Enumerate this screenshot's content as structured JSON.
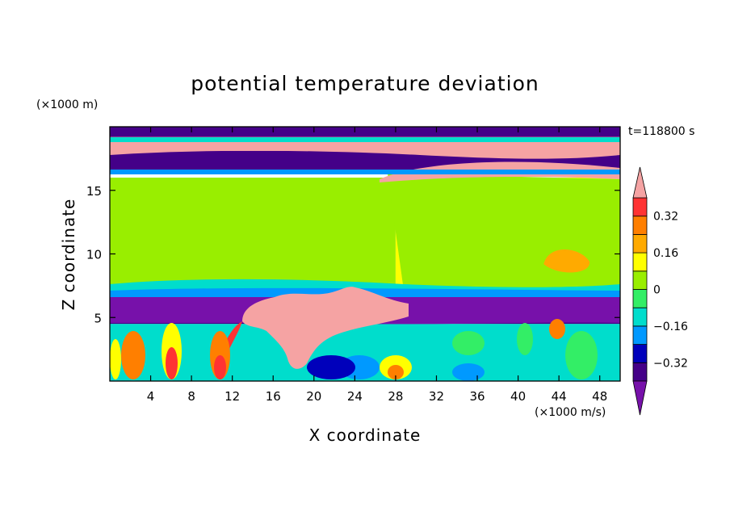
{
  "chart_data": {
    "type": "heatmap",
    "title": "potential temperature deviation",
    "xlabel": "X coordinate",
    "ylabel": "Z coordinate",
    "x_unit": "(×1000 m/s)",
    "y_unit": "(×1000 m)",
    "time_label": "t=118800 s",
    "xlim": [
      0,
      50
    ],
    "ylim": [
      0,
      20
    ],
    "x_ticks": [
      4,
      8,
      12,
      16,
      20,
      24,
      28,
      32,
      36,
      40,
      44,
      48
    ],
    "y_ticks": [
      5,
      10,
      15
    ],
    "colorbar": {
      "levels": [
        -0.4,
        -0.32,
        -0.24,
        -0.16,
        -0.08,
        0,
        0.08,
        0.16,
        0.24,
        0.32,
        0.4
      ],
      "tick_values": [
        0.32,
        0.16,
        0,
        -0.16,
        -0.32
      ],
      "tick_labels": [
        "0.32",
        "0.16",
        "0",
        "−0.16",
        "−0.32"
      ],
      "colors": {
        "above_max": "#f5a3a3",
        "b10": "#ff3333",
        "b9": "#ff7f00",
        "b8": "#ffaa00",
        "b7": "#ffff00",
        "b6": "#99ee00",
        "b5": "#33ee66",
        "b4": "#00ddcc",
        "b3": "#0099ff",
        "b2": "#0000bb",
        "b1": "#440088",
        "below_min": "#7711aa"
      }
    },
    "regions": [
      {
        "name": "top-band",
        "value": -0.36,
        "x": [
          0,
          50
        ],
        "z": [
          18.3,
          20.0
        ]
      },
      {
        "name": "upper-warm-layer",
        "value": 0.45,
        "x": [
          0,
          50
        ],
        "z": [
          18.1,
          19.2
        ]
      },
      {
        "name": "upper-cold-layer",
        "value": -0.36,
        "x": [
          0,
          50
        ],
        "z": [
          16.5,
          18.1
        ]
      },
      {
        "name": "stratosphere-warm-tongue",
        "value": 0.45,
        "x": [
          27,
          50
        ],
        "z": [
          16.0,
          17.3
        ]
      },
      {
        "name": "mid-troposphere-left",
        "value": 0.04,
        "x": [
          0,
          28
        ],
        "z": [
          7.5,
          16.0
        ]
      },
      {
        "name": "mid-troposphere-right",
        "value": 0.12,
        "x": [
          28,
          50
        ],
        "z": [
          7.0,
          16.0
        ]
      },
      {
        "name": "warm-patch-right",
        "value": 0.2,
        "x": [
          42,
          47
        ],
        "z": [
          8.3,
          10.7
        ]
      },
      {
        "name": "low-cold-layer",
        "value": -0.36,
        "x": [
          0,
          50
        ],
        "z": [
          4.5,
          6.5
        ]
      },
      {
        "name": "convective-plume",
        "value": 0.45,
        "x": [
          13,
          30
        ],
        "z": [
          2.0,
          7.5
        ]
      },
      {
        "name": "boundary-layer",
        "value": -0.1,
        "x": [
          0,
          50
        ],
        "z": [
          0,
          4.5
        ]
      }
    ]
  }
}
